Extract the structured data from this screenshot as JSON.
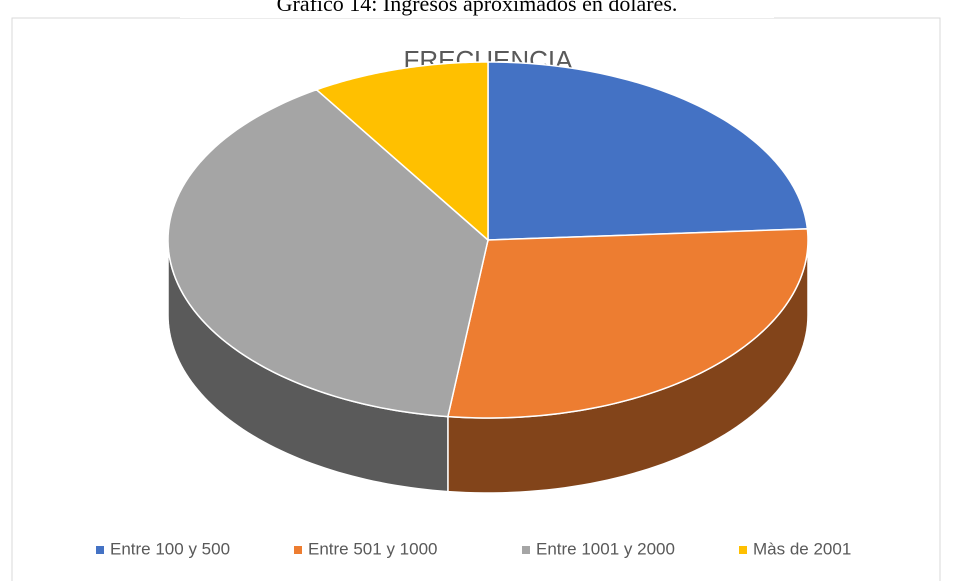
{
  "caption": "Gráfico 14: Ingresos aproximados en dólares.",
  "chart_data": {
    "type": "pie",
    "title": "FRECUENCIA",
    "categories": [
      "Entre 100 y 500",
      "Entre 501 y 1000",
      "Entre 1001 y 2000",
      "Màs de 2001"
    ],
    "values": [
      24,
      28,
      39,
      9
    ],
    "colors": [
      "#4472c4",
      "#ed7d31",
      "#a5a5a5",
      "#ffc000"
    ],
    "legend": "bottom"
  }
}
